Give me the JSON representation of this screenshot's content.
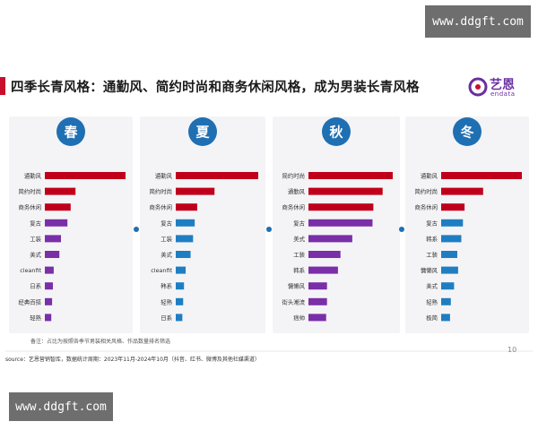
{
  "watermark_top": "www.ddgft.com",
  "watermark_bottom": "www.ddgft.com",
  "title": "四季长青风格：通勤风、简约时尚和商务休闲风格，成为男装长青风格",
  "logo": {
    "text": "艺恩",
    "sub": "endata"
  },
  "note": "备注：占比为按照各季节男装相关风格、作品数量排名筛选",
  "source": "source：艺恩营销智库，数据统计周期：2023年11月-2024年10月（抖音、红书、微博及其他社媒渠道）",
  "page_number": "10",
  "colors": {
    "red": "#c0001a",
    "purple": "#7a2fa8",
    "blue": "#1f7ec2",
    "badge": "#1f6fb3",
    "dot": "#1f6fb3"
  },
  "chart_data": [
    {
      "type": "bar",
      "season": "春",
      "categories": [
        "通勤风",
        "简约时尚",
        "商务休闲",
        "复古",
        "工装",
        "美式",
        "cleanfit",
        "日系",
        "经典百搭",
        "轻熟"
      ],
      "values": [
        100,
        38,
        32,
        28,
        20,
        18,
        11,
        10,
        9,
        8
      ],
      "bar_colors": [
        "red",
        "red",
        "red",
        "purple",
        "purple",
        "purple",
        "purple",
        "purple",
        "purple",
        "purple"
      ]
    },
    {
      "type": "bar",
      "season": "夏",
      "categories": [
        "通勤风",
        "简约时尚",
        "商务休闲",
        "复古",
        "工装",
        "美式",
        "cleanfit",
        "韩系",
        "轻熟",
        "日系"
      ],
      "values": [
        100,
        47,
        26,
        23,
        21,
        18,
        12,
        10,
        9,
        8
      ],
      "bar_colors": [
        "red",
        "red",
        "red",
        "blue",
        "blue",
        "blue",
        "blue",
        "blue",
        "blue",
        "blue"
      ]
    },
    {
      "type": "bar",
      "season": "秋",
      "categories": [
        "简约时尚",
        "通勤风",
        "商务休闲",
        "复古",
        "美式",
        "工装",
        "韩系",
        "慵懒风",
        "街头潮流",
        "痞帅"
      ],
      "values": [
        100,
        88,
        77,
        76,
        52,
        38,
        35,
        22,
        22,
        21
      ],
      "bar_colors": [
        "red",
        "red",
        "red",
        "purple",
        "purple",
        "purple",
        "purple",
        "purple",
        "purple",
        "purple"
      ]
    },
    {
      "type": "bar",
      "season": "冬",
      "categories": [
        "通勤风",
        "简约时尚",
        "商务休闲",
        "复古",
        "韩系",
        "工装",
        "慵懒风",
        "美式",
        "轻熟",
        "极简"
      ],
      "values": [
        100,
        52,
        29,
        27,
        25,
        20,
        21,
        16,
        12,
        11
      ],
      "bar_colors": [
        "red",
        "red",
        "red",
        "blue",
        "blue",
        "blue",
        "blue",
        "blue",
        "blue",
        "blue"
      ]
    }
  ]
}
